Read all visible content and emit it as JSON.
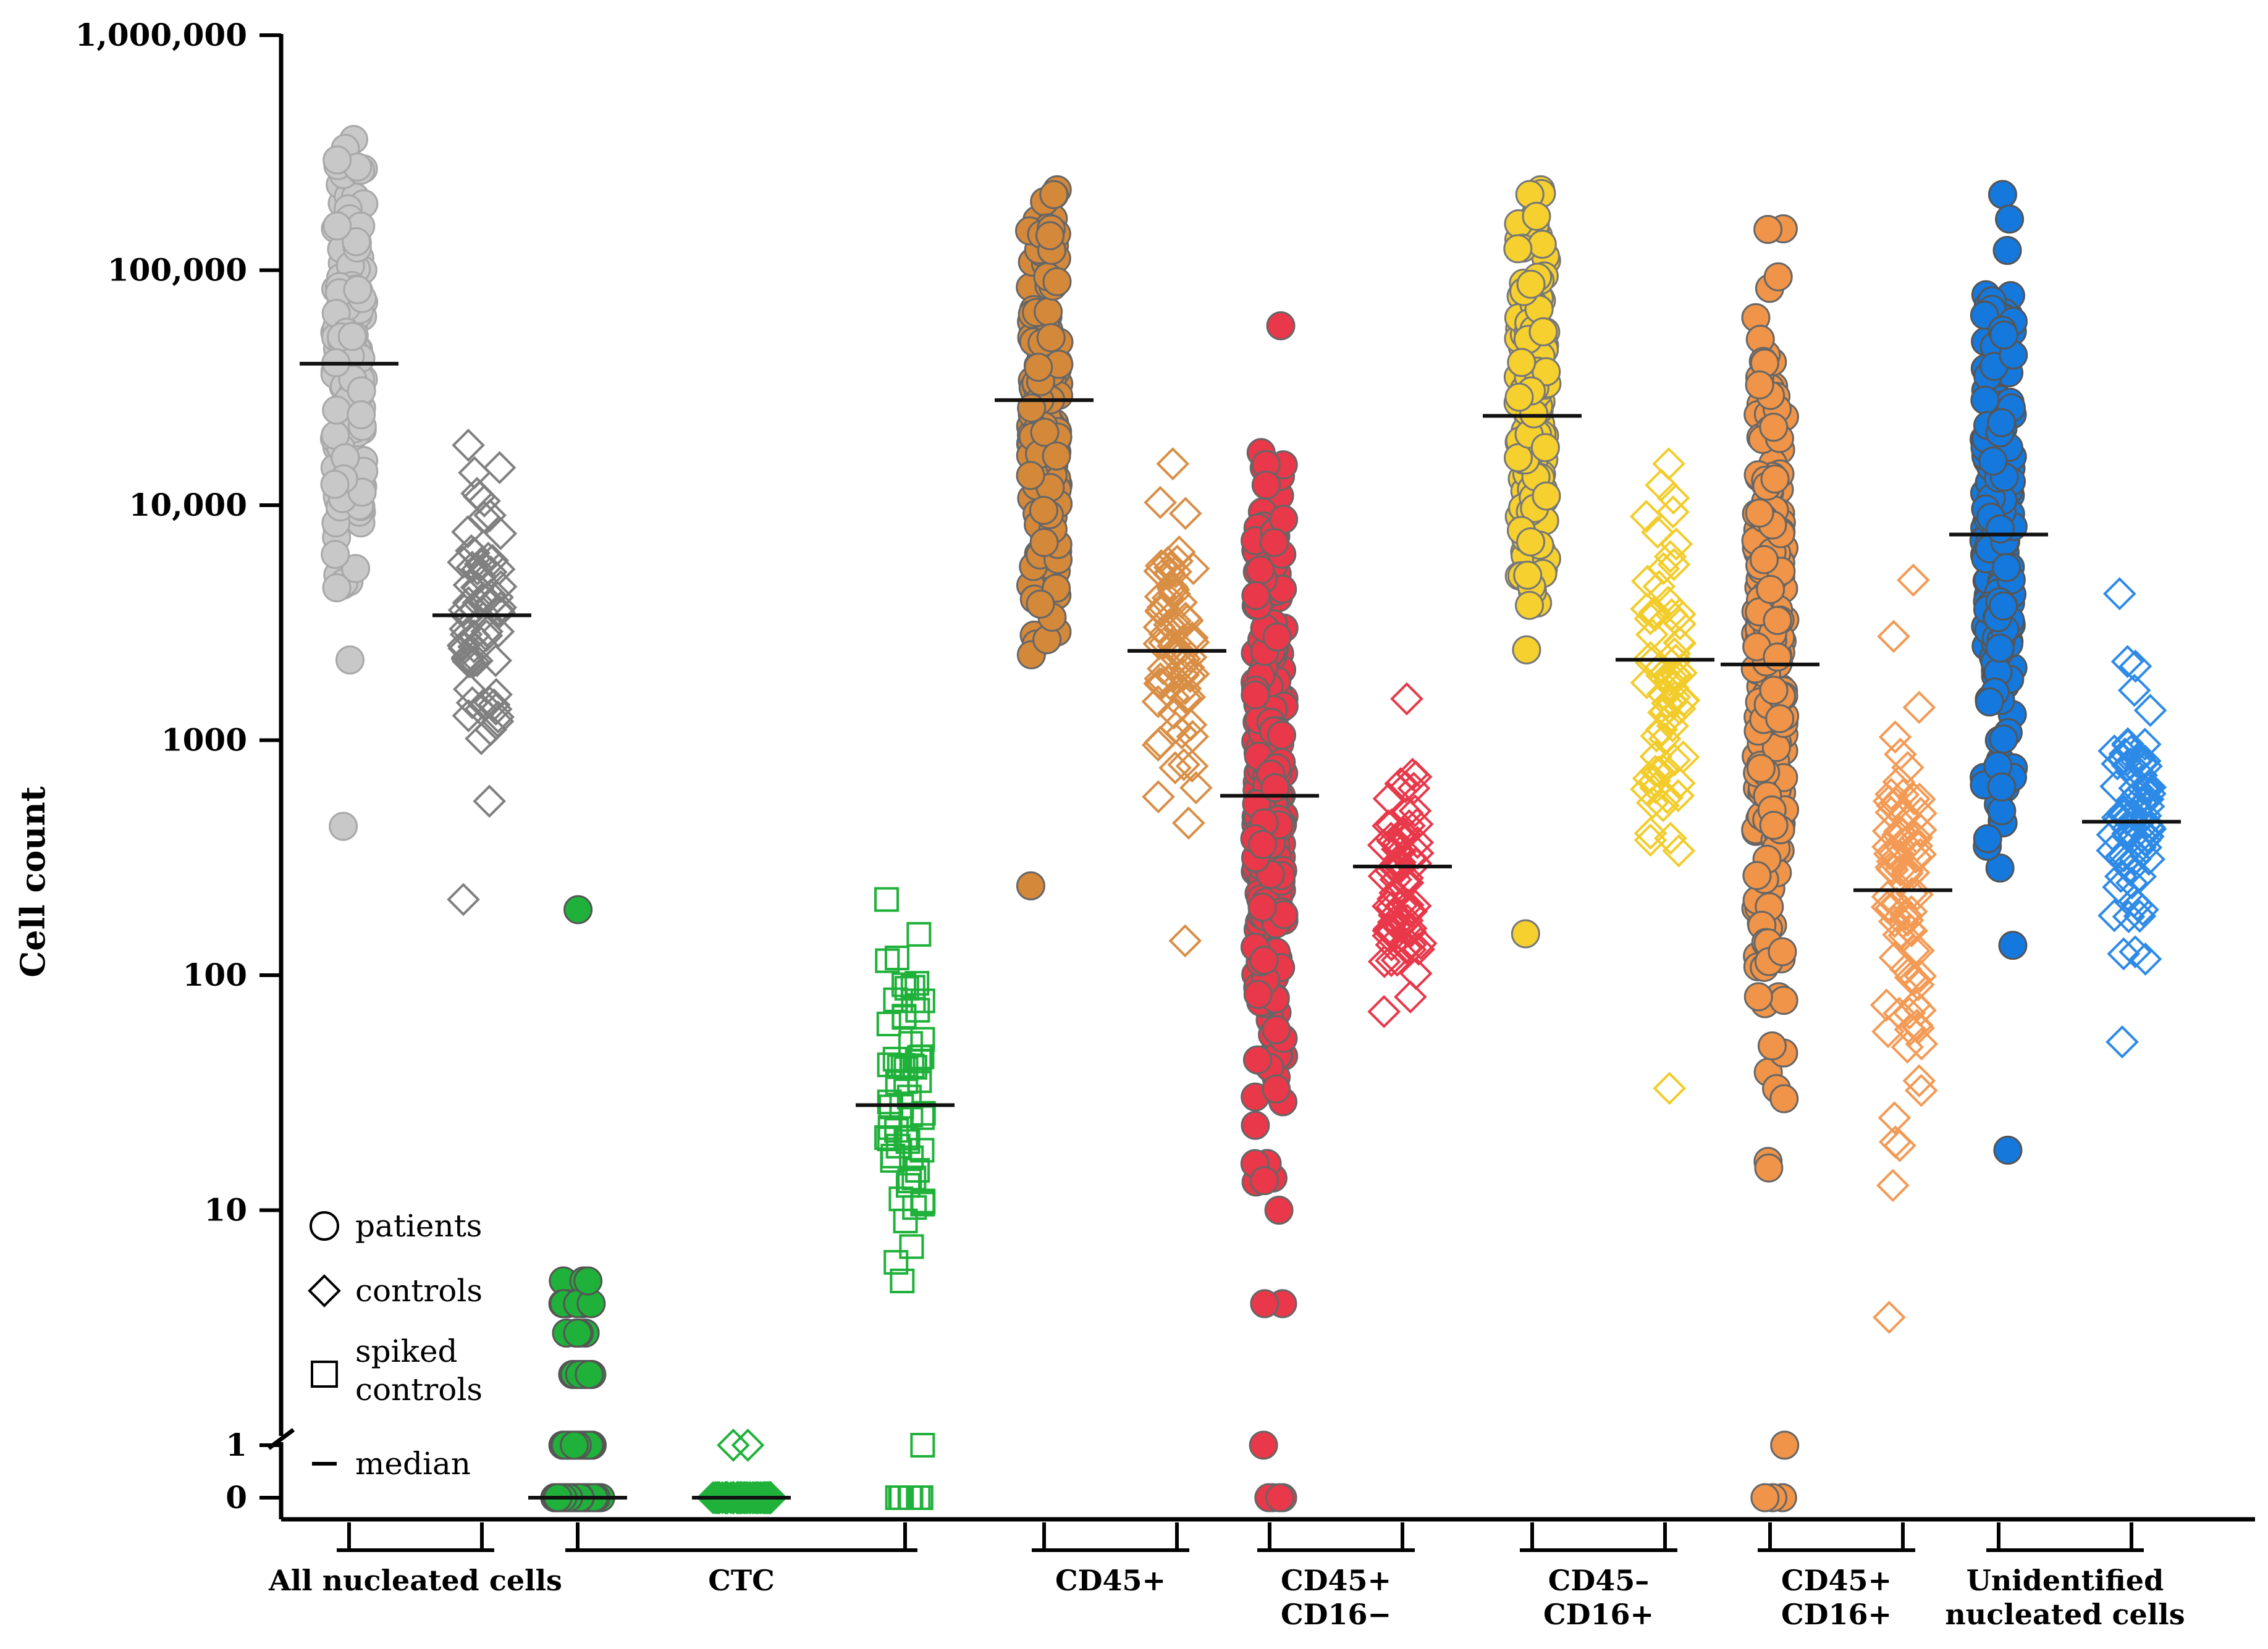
{
  "chart_data": {
    "type": "scatter",
    "subtype": "dot-strip plot (log scale with break)",
    "ylabel": "Cell count",
    "yscale": "log",
    "ylim": [
      0,
      1000000
    ],
    "y_ticks": [
      {
        "value": 0,
        "label": "0"
      },
      {
        "value": 1,
        "label": "1"
      },
      {
        "value": 10,
        "label": "10"
      },
      {
        "value": 100,
        "label": "100"
      },
      {
        "value": 1000,
        "label": "1000"
      },
      {
        "value": 10000,
        "label": "10,000"
      },
      {
        "value": 100000,
        "label": "100,000"
      },
      {
        "value": 1000000,
        "label": "1,000,000"
      }
    ],
    "legend": {
      "placement": "bottom-left",
      "items": [
        {
          "marker": "circle",
          "label": "patients"
        },
        {
          "marker": "diamond",
          "label": "controls"
        },
        {
          "marker": "square",
          "label": [
            "spiked",
            "controls"
          ]
        },
        {
          "marker": "median",
          "label": "median"
        }
      ]
    },
    "groups": [
      {
        "label": [
          "All nucleated cells"
        ],
        "series": [
          {
            "kind": "patients",
            "marker": "circle",
            "fill": "#c8c8c8",
            "stroke": "#a8a8a8",
            "filled": true,
            "n": 180,
            "median": 40000,
            "min": 430,
            "max": 360000
          },
          {
            "kind": "controls",
            "marker": "diamond",
            "fill": "none",
            "stroke": "#808080",
            "filled": false,
            "n": 70,
            "median": 3400,
            "min": 210,
            "max": 18000
          }
        ]
      },
      {
        "label": [
          "CTC"
        ],
        "series": [
          {
            "kind": "patients",
            "marker": "circle",
            "fill": "#1fb13a",
            "stroke": "#555555",
            "filled": true,
            "n": 150,
            "median": 0,
            "min": 0,
            "max": 190,
            "zeros": 45
          },
          {
            "kind": "controls",
            "marker": "diamond",
            "fill": "none",
            "stroke": "#1fb13a",
            "filled": false,
            "n": 60,
            "median": 0,
            "min": 0,
            "max": 1,
            "zeros": 58
          },
          {
            "kind": "spiked controls",
            "marker": "square",
            "fill": "none",
            "stroke": "#1fb13a",
            "filled": false,
            "n": 70,
            "median": 28,
            "min": 0,
            "max": 210,
            "zeros": 8
          }
        ]
      },
      {
        "label": [
          "CD45+"
        ],
        "series": [
          {
            "kind": "patients",
            "marker": "circle",
            "fill": "#d4883a",
            "stroke": "#666666",
            "filled": true,
            "n": 180,
            "median": 28000,
            "min": 240,
            "max": 220000
          },
          {
            "kind": "controls",
            "marker": "diamond",
            "fill": "none",
            "stroke": "#d98e45",
            "filled": false,
            "n": 70,
            "median": 2400,
            "min": 140,
            "max": 15000
          }
        ]
      },
      {
        "label": [
          "CD45+",
          "CD16−"
        ],
        "series": [
          {
            "kind": "patients",
            "marker": "circle",
            "fill": "#e8384a",
            "stroke": "#666666",
            "filled": true,
            "n": 260,
            "median": 580,
            "min": 0,
            "max": 58000,
            "zeros": 4
          },
          {
            "kind": "controls",
            "marker": "diamond",
            "fill": "none",
            "stroke": "#e8384a",
            "filled": false,
            "n": 70,
            "median": 290,
            "min": 70,
            "max": 1500
          }
        ]
      },
      {
        "label": [
          "CD45–",
          "CD16+"
        ],
        "series": [
          {
            "kind": "patients",
            "marker": "circle",
            "fill": "#f5d02e",
            "stroke": "#777777",
            "filled": true,
            "n": 180,
            "median": 24000,
            "min": 150,
            "max": 220000
          },
          {
            "kind": "controls",
            "marker": "diamond",
            "fill": "none",
            "stroke": "#f2cc2a",
            "filled": false,
            "n": 70,
            "median": 2200,
            "min": 33,
            "max": 15000
          }
        ]
      },
      {
        "label": [
          "CD45+",
          "CD16+"
        ],
        "series": [
          {
            "kind": "patients",
            "marker": "circle",
            "fill": "#ef9448",
            "stroke": "#666666",
            "filled": true,
            "n": 260,
            "median": 2100,
            "min": 0,
            "max": 150000,
            "zeros": 3
          },
          {
            "kind": "controls",
            "marker": "diamond",
            "fill": "none",
            "stroke": "#f39a55",
            "filled": false,
            "n": 80,
            "median": 230,
            "min": 3.5,
            "max": 4800
          }
        ]
      },
      {
        "label": [
          "Unidentified",
          "nucleated cells"
        ],
        "series": [
          {
            "kind": "patients",
            "marker": "circle",
            "fill": "#1478dc",
            "stroke": "#555555",
            "filled": true,
            "n": 200,
            "median": 7500,
            "min": 18,
            "max": 210000
          },
          {
            "kind": "controls",
            "marker": "diamond",
            "fill": "none",
            "stroke": "#2d8ae6",
            "filled": false,
            "n": 80,
            "median": 450,
            "min": 52,
            "max": 4200
          }
        ]
      }
    ]
  }
}
